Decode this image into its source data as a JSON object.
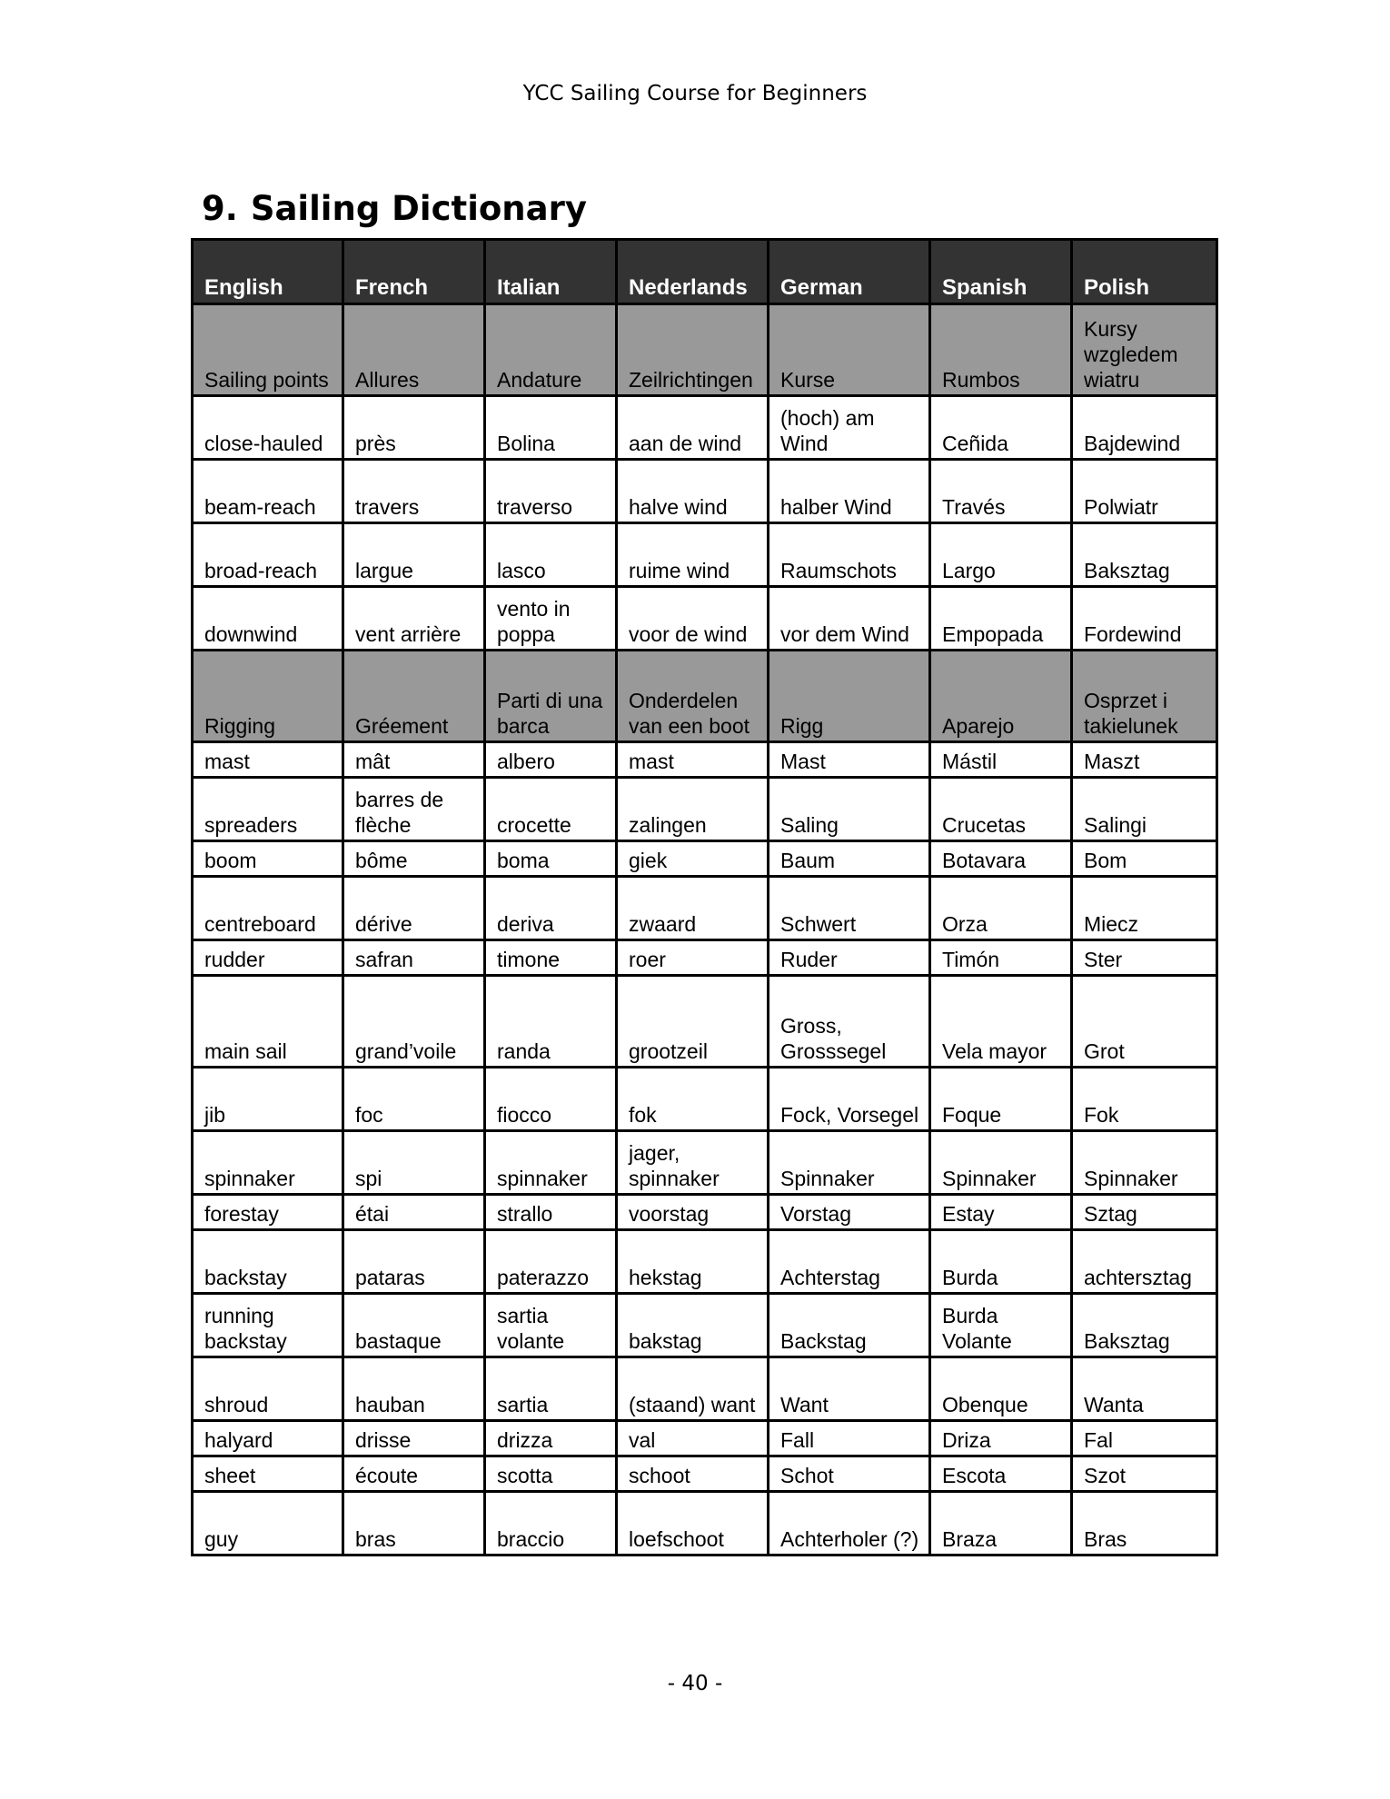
{
  "running_header": "YCC Sailing Course for Beginners",
  "title": {
    "number": "9.",
    "text": "Sailing Dictionary"
  },
  "table": {
    "headers": [
      "English",
      "French",
      "Italian",
      "Nederlands",
      "German",
      "Spanish",
      "Polish"
    ],
    "rows": [
      {
        "section": true,
        "cells": [
          "Sailing points",
          "Allures",
          "Andature",
          "Zeilrichtingen",
          "Kurse",
          "Rumbos",
          "Kursy wzgledem wiatru"
        ]
      },
      {
        "cells": [
          "close-hauled",
          "près",
          "Bolina",
          "aan de wind",
          "(hoch) am Wind",
          "Ceñida",
          "Bajdewind"
        ]
      },
      {
        "cells": [
          "beam-reach",
          "travers",
          "traverso",
          "halve wind",
          "halber Wind",
          "Través",
          "Polwiatr"
        ]
      },
      {
        "cells": [
          "broad-reach",
          "largue",
          "lasco",
          "ruime wind",
          "Raumschots",
          "Largo",
          "Baksztag"
        ]
      },
      {
        "cells": [
          "downwind",
          "vent arrière",
          "vento in poppa",
          "voor de wind",
          "vor dem Wind",
          "Empopada",
          "Fordewind"
        ]
      },
      {
        "section": true,
        "cells": [
          "Rigging",
          "Gréement",
          "Parti di una barca",
          "Onderdelen van een boot",
          "Rigg",
          "Aparejo",
          "Osprzet i takielunek"
        ]
      },
      {
        "cells": [
          "mast",
          "mât",
          "albero",
          "mast",
          "Mast",
          "Mástil",
          "Maszt"
        ]
      },
      {
        "cells": [
          "spreaders",
          "barres de flèche",
          "crocette",
          "zalingen",
          "Saling",
          "Crucetas",
          "Salingi"
        ]
      },
      {
        "cells": [
          "boom",
          "bôme",
          "boma",
          "giek",
          "Baum",
          "Botavara",
          "Bom"
        ]
      },
      {
        "cells": [
          "centreboard",
          "dérive",
          "deriva",
          "zwaard",
          "Schwert",
          "Orza",
          "Miecz"
        ]
      },
      {
        "cells": [
          "rudder",
          "safran",
          "timone",
          "roer",
          "Ruder",
          "Timón",
          "Ster"
        ]
      },
      {
        "cells": [
          "main sail",
          "grand’voile",
          "randa",
          "grootzeil",
          "Gross, Grosssegel",
          "Vela mayor",
          "Grot"
        ]
      },
      {
        "cells": [
          "jib",
          "foc",
          "fiocco",
          "fok",
          "Fock, Vorsegel",
          "Foque",
          "Fok"
        ]
      },
      {
        "cells": [
          "spinnaker",
          "spi",
          "spinnaker",
          "jager, spinnaker",
          "Spinnaker",
          "Spinnaker",
          "Spinnaker"
        ]
      },
      {
        "cells": [
          "forestay",
          "étai",
          "strallo",
          "voorstag",
          "Vorstag",
          "Estay",
          "Sztag"
        ]
      },
      {
        "cells": [
          "backstay",
          "pataras",
          "paterazzo",
          "hekstag",
          "Achterstag",
          "Burda",
          "achtersztag"
        ]
      },
      {
        "cells": [
          "running backstay",
          "bastaque",
          "sartia volante",
          "bakstag",
          "Backstag",
          "Burda Volante",
          "Baksztag"
        ]
      },
      {
        "cells": [
          "shroud",
          "hauban",
          "sartia",
          "(staand) want",
          "Want",
          "Obenque",
          "Wanta"
        ]
      },
      {
        "cells": [
          "halyard",
          "drisse",
          "drizza",
          "val",
          "Fall",
          "Driza",
          "Fal"
        ]
      },
      {
        "cells": [
          "sheet",
          "écoute",
          "scotta",
          "schoot",
          "Schot",
          "Escota",
          "Szot"
        ]
      },
      {
        "cells": [
          "guy",
          "bras",
          "braccio",
          "loefschoot",
          "Achterholer (?)",
          "Braza",
          "Bras"
        ]
      }
    ]
  },
  "page_number": "- 40 -",
  "colors": {
    "header_bg": "#333333",
    "section_bg": "#999999"
  }
}
